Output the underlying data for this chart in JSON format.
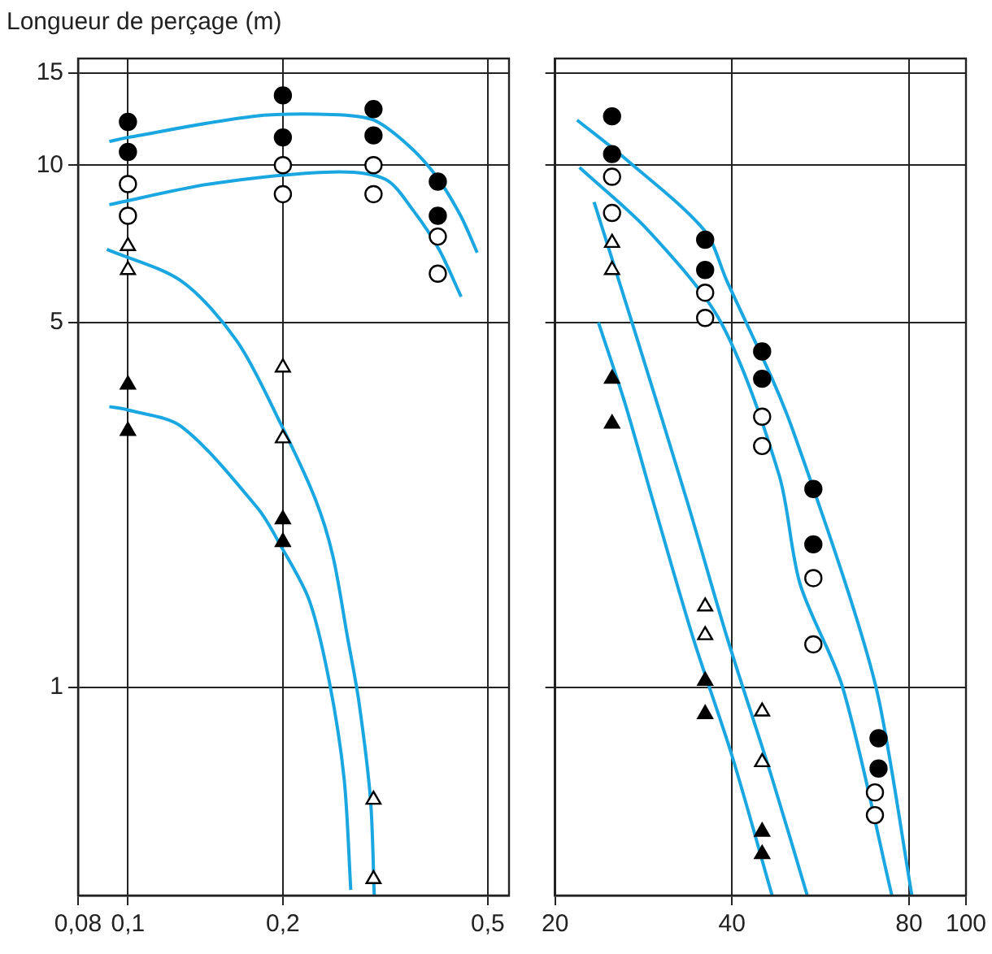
{
  "chart_data": [
    {
      "type": "scatter",
      "ylabel": "Longueur de perçage (m)",
      "log": "xy",
      "grid": true,
      "legend": false,
      "xlim": [
        0.08,
        0.55
      ],
      "xticks": [
        {
          "value": 0.08,
          "label": "0,08"
        },
        {
          "value": 0.1,
          "label": "0,1"
        },
        {
          "value": 0.2,
          "label": "0,2"
        },
        {
          "value": 0.5,
          "label": "0,5"
        }
      ],
      "ylim": [
        0.4,
        16
      ],
      "yticks": [
        1,
        5,
        10,
        15
      ],
      "series": [
        {
          "type": "line",
          "marker": "none",
          "color": "#1aa7e1",
          "x": [
            0.092,
            0.1,
            0.175,
            0.249,
            0.3,
            0.351,
            0.398,
            0.443,
            0.477
          ],
          "values": [
            11.1,
            11.3,
            12.4,
            12.5,
            12.2,
            10.9,
            9.5,
            8.0,
            6.8
          ]
        },
        {
          "type": "line",
          "marker": "none",
          "color": "#1aa7e1",
          "x": [
            0.092,
            0.144,
            0.249,
            0.316,
            0.358,
            0.402,
            0.444
          ],
          "values": [
            8.4,
            9.2,
            9.7,
            9.4,
            8.2,
            6.9,
            5.6
          ]
        },
        {
          "type": "line",
          "marker": "none",
          "color": "#1aa7e1",
          "x": [
            0.091,
            0.127,
            0.163,
            0.198,
            0.231,
            0.25,
            0.267,
            0.281,
            0.296,
            0.301
          ],
          "values": [
            6.9,
            6.0,
            4.6,
            3.2,
            2.3,
            1.79,
            1.25,
            0.94,
            0.61,
            0.4
          ]
        },
        {
          "type": "line",
          "marker": "none",
          "color": "#1aa7e1",
          "x": [
            0.092,
            0.1,
            0.127,
            0.179,
            0.198,
            0.225,
            0.246,
            0.263,
            0.271
          ],
          "values": [
            3.45,
            3.4,
            3.16,
            2.2,
            1.87,
            1.47,
            1.03,
            0.67,
            0.41
          ]
        },
        {
          "type": "scatter",
          "marker": "circle",
          "color": "#000000",
          "x": [
            0.1,
            0.1,
            0.2,
            0.2,
            0.3,
            0.3,
            0.4,
            0.4
          ],
          "values": [
            12.1,
            10.6,
            13.6,
            11.3,
            12.8,
            11.4,
            9.3,
            8.0
          ]
        },
        {
          "type": "scatter",
          "marker": "circle",
          "color": "#ffffff",
          "x": [
            0.1,
            0.1,
            0.2,
            0.2,
            0.3,
            0.3,
            0.4,
            0.4
          ],
          "values": [
            9.2,
            8.0,
            10.0,
            8.8,
            10.0,
            8.8,
            7.3,
            6.2
          ]
        },
        {
          "type": "scatter",
          "marker": "triangle",
          "color": "#ffffff",
          "x": [
            0.1,
            0.1,
            0.2,
            0.2,
            0.3,
            0.3
          ],
          "values": [
            7.0,
            6.3,
            4.1,
            3.0,
            0.61,
            0.43
          ]
        },
        {
          "type": "scatter",
          "marker": "triangle",
          "color": "#000000",
          "x": [
            0.1,
            0.1,
            0.2,
            0.2
          ],
          "values": [
            3.8,
            3.1,
            2.1,
            1.9
          ]
        }
      ]
    },
    {
      "type": "scatter",
      "log": "xy",
      "grid": true,
      "legend": false,
      "tick_labels": "x",
      "xlim": [
        20,
        100
      ],
      "xticks": [
        20,
        40,
        80,
        100
      ],
      "ylim": [
        0.4,
        16
      ],
      "yticks": [
        1,
        5,
        10,
        15
      ],
      "series": [
        {
          "type": "line",
          "marker": "none",
          "color": "#1aa7e1",
          "x": [
            21.8,
            26.3,
            35.9,
            39.2,
            46.8,
            50.8,
            63.7,
            71.2,
            80.9
          ],
          "values": [
            12.2,
            10.3,
            7.5,
            6.0,
            3.9,
            3.1,
            1.47,
            0.94,
            0.4
          ]
        },
        {
          "type": "line",
          "marker": "none",
          "color": "#1aa7e1",
          "x": [
            22.0,
            28.8,
            38.3,
            48.1,
            52.2,
            61.7,
            74.8
          ],
          "values": [
            9.9,
            7.5,
            5.0,
            2.55,
            1.58,
            1.0,
            0.4
          ]
        },
        {
          "type": "line",
          "marker": "none",
          "color": "#1aa7e1",
          "x": [
            23.3,
            27.5,
            33.6,
            39.2,
            46.8,
            53.7
          ],
          "values": [
            8.5,
            4.7,
            2.26,
            1.25,
            0.67,
            0.4
          ]
        },
        {
          "type": "line",
          "marker": "none",
          "color": "#1aa7e1",
          "x": [
            23.7,
            26.3,
            29.4,
            34.3,
            40.0,
            46.8
          ],
          "values": [
            5.0,
            3.5,
            2.26,
            1.25,
            0.74,
            0.4
          ]
        },
        {
          "type": "scatter",
          "marker": "circle",
          "color": "#000000",
          "x": [
            25,
            25,
            36,
            36,
            45,
            45,
            55,
            55,
            71,
            71
          ],
          "values": [
            12.4,
            10.5,
            7.2,
            6.3,
            4.4,
            3.9,
            2.4,
            1.88,
            0.8,
            0.7
          ]
        },
        {
          "type": "scatter",
          "marker": "circle",
          "color": "#ffffff",
          "x": [
            25,
            25,
            36,
            36,
            45,
            45,
            55,
            55,
            70,
            70
          ],
          "values": [
            9.5,
            8.1,
            5.7,
            5.1,
            3.3,
            2.9,
            1.62,
            1.21,
            0.63,
            0.57
          ]
        },
        {
          "type": "scatter",
          "marker": "triangle",
          "color": "#ffffff",
          "x": [
            25,
            25,
            36,
            36,
            45,
            45
          ],
          "values": [
            7.1,
            6.3,
            1.43,
            1.26,
            0.9,
            0.72
          ]
        },
        {
          "type": "scatter",
          "marker": "triangle",
          "color": "#000000",
          "x": [
            25,
            25,
            36,
            36,
            45,
            45
          ],
          "values": [
            3.9,
            3.2,
            1.03,
            0.89,
            0.53,
            0.48
          ]
        }
      ]
    }
  ]
}
